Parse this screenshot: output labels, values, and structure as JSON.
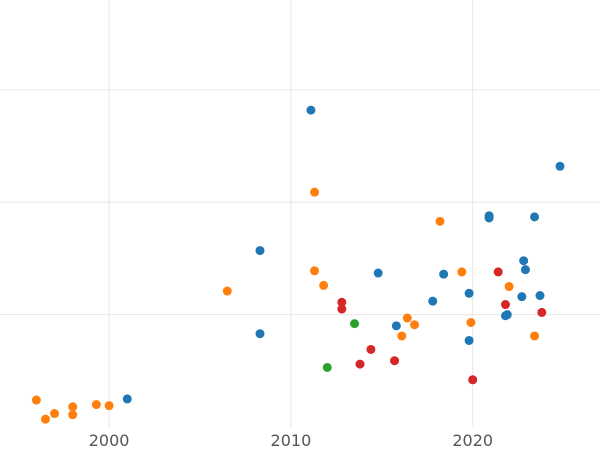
{
  "chart_data": {
    "type": "scatter",
    "title": "",
    "xlabel": "",
    "ylabel": "",
    "xlim": [
      1994,
      2027
    ],
    "ylim": [
      0,
      3.8
    ],
    "x_ticks": [
      2000,
      2010,
      2020
    ],
    "x_tick_labels": [
      "2000",
      "2010",
      "2020"
    ],
    "y_grid": [
      1,
      2,
      3
    ],
    "grid": true,
    "legend": "none",
    "series": [
      {
        "color": "#1f77b4",
        "points": [
          [
            2001.0,
            0.25
          ],
          [
            2008.3,
            0.83
          ],
          [
            2008.3,
            1.57
          ],
          [
            2011.1,
            2.82
          ],
          [
            2014.8,
            1.37
          ],
          [
            2015.8,
            0.9
          ],
          [
            2017.8,
            1.12
          ],
          [
            2018.4,
            1.36
          ],
          [
            2019.8,
            0.77
          ],
          [
            2019.8,
            1.19
          ],
          [
            2020.9,
            1.86
          ],
          [
            2020.9,
            1.88
          ],
          [
            2021.8,
            0.99
          ],
          [
            2021.9,
            1.0
          ],
          [
            2022.7,
            1.16
          ],
          [
            2022.8,
            1.48
          ],
          [
            2022.9,
            1.4
          ],
          [
            2023.4,
            1.87
          ],
          [
            2023.7,
            1.17
          ],
          [
            2024.8,
            2.32
          ]
        ]
      },
      {
        "color": "#ff7f0e",
        "points": [
          [
            1996.0,
            0.24
          ],
          [
            1996.5,
            0.07
          ],
          [
            1997.0,
            0.12
          ],
          [
            1998.0,
            0.18
          ],
          [
            1998.0,
            0.11
          ],
          [
            1999.3,
            0.2
          ],
          [
            2000.0,
            0.19
          ],
          [
            2006.5,
            1.21
          ],
          [
            2011.3,
            1.39
          ],
          [
            2011.3,
            2.09
          ],
          [
            2011.8,
            1.26
          ],
          [
            2016.1,
            0.81
          ],
          [
            2016.4,
            0.97
          ],
          [
            2016.8,
            0.91
          ],
          [
            2018.2,
            1.83
          ],
          [
            2019.4,
            1.38
          ],
          [
            2019.9,
            0.93
          ],
          [
            2022.0,
            1.25
          ],
          [
            2023.4,
            0.81
          ]
        ]
      },
      {
        "color": "#d62728",
        "points": [
          [
            2012.8,
            1.11
          ],
          [
            2012.8,
            1.05
          ],
          [
            2013.8,
            0.56
          ],
          [
            2014.4,
            0.69
          ],
          [
            2015.7,
            0.59
          ],
          [
            2020.0,
            0.42
          ],
          [
            2021.4,
            1.38
          ],
          [
            2021.8,
            1.09
          ],
          [
            2023.8,
            1.02
          ]
        ]
      },
      {
        "color": "#2ca02c",
        "points": [
          [
            2012.0,
            0.53
          ],
          [
            2013.5,
            0.92
          ]
        ]
      }
    ]
  }
}
